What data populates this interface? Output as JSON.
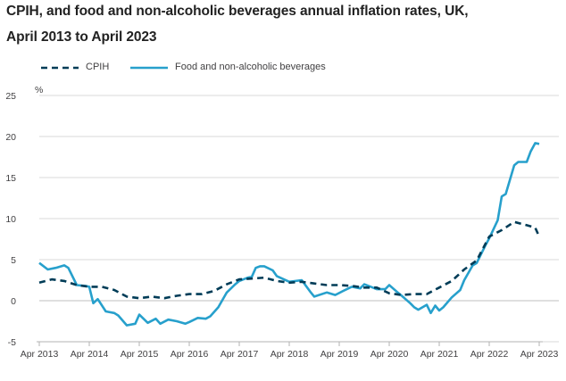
{
  "chart_data": {
    "type": "line",
    "title": "CPIH, and food and non-alcoholic beverages annual inflation rates, UK,",
    "subtitle": "April 2013 to April 2023",
    "ylabel": "%",
    "xlabel": "",
    "ylim": [
      -5,
      25
    ],
    "yticks": [
      -5,
      0,
      5,
      10,
      15,
      20,
      25
    ],
    "xlim": [
      2013.25,
      2023.25
    ],
    "xticks": [
      {
        "x": 2013.25,
        "label": "Apr 2013"
      },
      {
        "x": 2014.25,
        "label": "Apr 2014"
      },
      {
        "x": 2015.25,
        "label": "Apr 2015"
      },
      {
        "x": 2016.25,
        "label": "Apr 2016"
      },
      {
        "x": 2017.25,
        "label": "Apr 2017"
      },
      {
        "x": 2018.25,
        "label": "Apr 2018"
      },
      {
        "x": 2019.25,
        "label": "Apr 2019"
      },
      {
        "x": 2020.25,
        "label": "Apr 2020"
      },
      {
        "x": 2021.25,
        "label": "Apr 2021"
      },
      {
        "x": 2022.25,
        "label": "Apr 2022"
      },
      {
        "x": 2023.25,
        "label": "Apr 2023"
      }
    ],
    "grid": true,
    "legend_position": "top-left",
    "series": [
      {
        "name": "CPIH",
        "style": "dashed",
        "color": "#003c57",
        "points": [
          [
            2013.25,
            2.2
          ],
          [
            2013.5,
            2.6
          ],
          [
            2013.75,
            2.4
          ],
          [
            2014.0,
            1.9
          ],
          [
            2014.25,
            1.7
          ],
          [
            2014.5,
            1.7
          ],
          [
            2014.75,
            1.3
          ],
          [
            2015.0,
            0.5
          ],
          [
            2015.25,
            0.3
          ],
          [
            2015.5,
            0.5
          ],
          [
            2015.75,
            0.3
          ],
          [
            2016.0,
            0.6
          ],
          [
            2016.25,
            0.8
          ],
          [
            2016.5,
            0.8
          ],
          [
            2016.75,
            1.2
          ],
          [
            2017.0,
            2.0
          ],
          [
            2017.25,
            2.6
          ],
          [
            2017.5,
            2.7
          ],
          [
            2017.75,
            2.8
          ],
          [
            2018.0,
            2.4
          ],
          [
            2018.25,
            2.2
          ],
          [
            2018.5,
            2.3
          ],
          [
            2018.75,
            2.1
          ],
          [
            2019.0,
            1.9
          ],
          [
            2019.25,
            1.9
          ],
          [
            2019.5,
            1.8
          ],
          [
            2019.75,
            1.6
          ],
          [
            2020.0,
            1.6
          ],
          [
            2020.25,
            0.9
          ],
          [
            2020.5,
            0.7
          ],
          [
            2020.75,
            0.8
          ],
          [
            2021.0,
            0.8
          ],
          [
            2021.25,
            1.6
          ],
          [
            2021.5,
            2.4
          ],
          [
            2021.75,
            3.8
          ],
          [
            2022.0,
            4.9
          ],
          [
            2022.25,
            7.8
          ],
          [
            2022.5,
            8.6
          ],
          [
            2022.75,
            9.6
          ],
          [
            2023.0,
            9.2
          ],
          [
            2023.17,
            8.9
          ],
          [
            2023.25,
            7.8
          ]
        ]
      },
      {
        "name": "Food and non-alcoholic beverages",
        "style": "solid",
        "color": "#27a0cc",
        "points": [
          [
            2013.25,
            4.6
          ],
          [
            2013.42,
            3.8
          ],
          [
            2013.58,
            4.0
          ],
          [
            2013.75,
            4.3
          ],
          [
            2013.83,
            4.0
          ],
          [
            2014.0,
            1.9
          ],
          [
            2014.17,
            1.8
          ],
          [
            2014.25,
            1.7
          ],
          [
            2014.33,
            -0.3
          ],
          [
            2014.42,
            0.2
          ],
          [
            2014.58,
            -1.3
          ],
          [
            2014.75,
            -1.5
          ],
          [
            2014.83,
            -1.8
          ],
          [
            2015.0,
            -3.0
          ],
          [
            2015.17,
            -2.8
          ],
          [
            2015.25,
            -1.7
          ],
          [
            2015.42,
            -2.7
          ],
          [
            2015.58,
            -2.2
          ],
          [
            2015.67,
            -2.8
          ],
          [
            2015.83,
            -2.3
          ],
          [
            2016.0,
            -2.5
          ],
          [
            2016.17,
            -2.8
          ],
          [
            2016.25,
            -2.6
          ],
          [
            2016.42,
            -2.1
          ],
          [
            2016.58,
            -2.2
          ],
          [
            2016.67,
            -1.9
          ],
          [
            2016.83,
            -0.8
          ],
          [
            2017.0,
            1.0
          ],
          [
            2017.17,
            2.0
          ],
          [
            2017.25,
            2.4
          ],
          [
            2017.42,
            2.8
          ],
          [
            2017.5,
            2.9
          ],
          [
            2017.58,
            4.0
          ],
          [
            2017.67,
            4.2
          ],
          [
            2017.75,
            4.2
          ],
          [
            2017.92,
            3.7
          ],
          [
            2018.0,
            3.0
          ],
          [
            2018.25,
            2.3
          ],
          [
            2018.5,
            2.5
          ],
          [
            2018.67,
            1.1
          ],
          [
            2018.75,
            0.5
          ],
          [
            2019.0,
            1.0
          ],
          [
            2019.17,
            0.7
          ],
          [
            2019.33,
            1.2
          ],
          [
            2019.5,
            1.7
          ],
          [
            2019.67,
            1.5
          ],
          [
            2019.75,
            2.0
          ],
          [
            2020.0,
            1.4
          ],
          [
            2020.17,
            1.4
          ],
          [
            2020.25,
            1.9
          ],
          [
            2020.42,
            1.0
          ],
          [
            2020.5,
            0.6
          ],
          [
            2020.67,
            -0.3
          ],
          [
            2020.75,
            -0.8
          ],
          [
            2020.83,
            -1.1
          ],
          [
            2021.0,
            -0.5
          ],
          [
            2021.08,
            -1.5
          ],
          [
            2021.17,
            -0.6
          ],
          [
            2021.25,
            -1.2
          ],
          [
            2021.33,
            -0.8
          ],
          [
            2021.5,
            0.4
          ],
          [
            2021.67,
            1.3
          ],
          [
            2021.75,
            2.5
          ],
          [
            2021.92,
            4.3
          ],
          [
            2022.0,
            4.6
          ],
          [
            2022.17,
            6.7
          ],
          [
            2022.25,
            7.6
          ],
          [
            2022.42,
            9.8
          ],
          [
            2022.5,
            12.7
          ],
          [
            2022.58,
            13.0
          ],
          [
            2022.75,
            16.5
          ],
          [
            2022.83,
            16.9
          ],
          [
            2023.0,
            16.9
          ],
          [
            2023.08,
            18.2
          ],
          [
            2023.17,
            19.2
          ],
          [
            2023.25,
            19.1
          ]
        ]
      }
    ]
  },
  "colors": {
    "cpih": "#003c57",
    "food": "#27a0cc",
    "grid": "#d9d9d9",
    "axis": "#b3b3b3",
    "text": "#414042"
  }
}
